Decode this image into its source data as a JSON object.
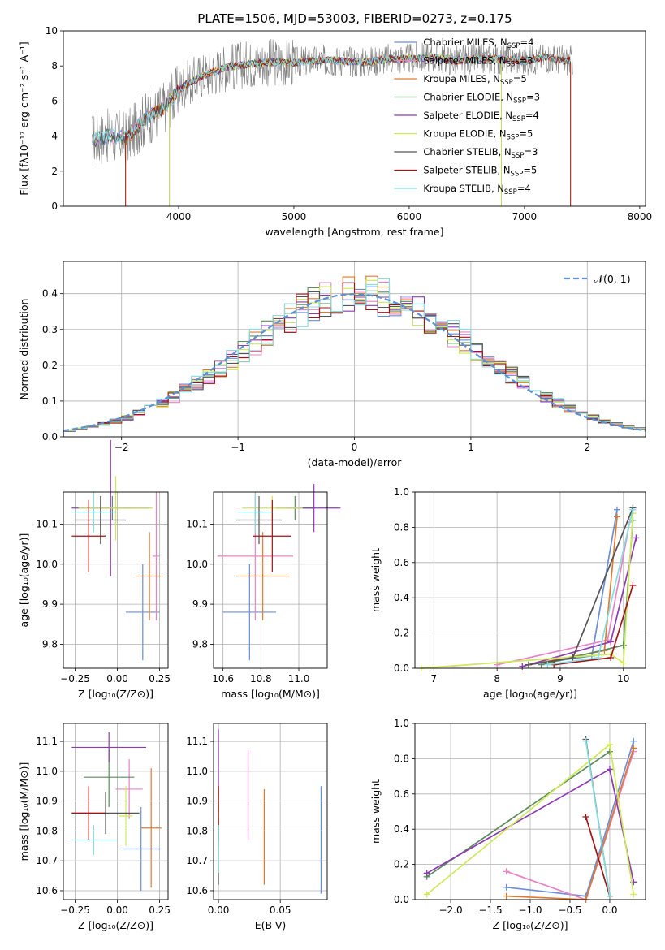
{
  "title": "PLATE=1506, MJD=53003, FIBERID=0273, z=0.175",
  "colors": {
    "Chabrier MILES": "#6a8fd8",
    "Salpeter MILES": "#e983c4",
    "Kroupa MILES": "#e07a2e",
    "Chabrier ELODIE": "#5b8a5b",
    "Salpeter ELODIE": "#8e3ab6",
    "Kroupa ELODIE": "#cdea57",
    "Chabrier STELIB": "#555555",
    "Salpeter STELIB": "#a31313",
    "Kroupa STELIB": "#84dde2"
  },
  "chart_data": [
    {
      "id": "spectrum",
      "type": "line",
      "title": "",
      "xlabel": "wavelength [Angstrom, rest frame]",
      "ylabel": "Flux [fλ10⁻¹⁷ erg cm⁻² s⁻¹ A⁻¹]",
      "xlim": [
        3000,
        8050
      ],
      "ylim": [
        0,
        10
      ],
      "xticks": [
        4000,
        5000,
        6000,
        7000,
        8000
      ],
      "yticks": [
        0,
        2,
        4,
        6,
        8,
        10
      ],
      "legend": [
        "Chabrier MILES, N_SSP=4",
        "Salpeter MILES, N_SSP=3",
        "Kroupa MILES, N_SSP=5",
        "Chabrier ELODIE, N_SSP=3",
        "Salpeter ELODIE, N_SSP=4",
        "Kroupa ELODIE, N_SSP=5",
        "Chabrier STELIB, N_SSP=3",
        "Salpeter STELIB, N_SSP=5",
        "Kroupa STELIB, N_SSP=4"
      ],
      "legend_position": "upper right",
      "data_x": [
        3250,
        3400,
        3550,
        3700,
        3850,
        3950,
        4050,
        4200,
        4400,
        4600,
        4800,
        5000,
        5200,
        5400,
        5600,
        5800,
        6000,
        6200,
        6400,
        6600,
        6800,
        7000,
        7200,
        7350
      ],
      "data_y": [
        3.8,
        4.0,
        3.9,
        4.9,
        5.5,
        6.2,
        6.9,
        7.4,
        7.9,
        8.1,
        8.2,
        8.2,
        8.3,
        8.3,
        8.2,
        8.4,
        8.4,
        8.5,
        8.3,
        8.4,
        8.4,
        8.3,
        8.5,
        8.3
      ],
      "model_cutoffs": {
        "Salpeter STELIB": [
          3540,
          7400
        ],
        "Kroupa MILES": [
          3540,
          7400
        ],
        "Kroupa ELODIE": [
          3920,
          6800
        ],
        "Salpeter ELODIE": [
          3920,
          6800
        ]
      }
    },
    {
      "id": "residuals",
      "type": "histogram",
      "xlabel": "(data-model)/error",
      "ylabel": "Normed distribution",
      "xlim": [
        -2.5,
        2.5
      ],
      "ylim": [
        0,
        0.49
      ],
      "xticks": [
        -2,
        -1,
        0,
        1,
        2
      ],
      "yticks": [
        0.0,
        0.1,
        0.2,
        0.3,
        0.4
      ],
      "legend": [
        "𝒩(0, 1)"
      ],
      "legend_position": "upper right",
      "bin_width": 0.1,
      "bin_start": -2.5
    },
    {
      "id": "age-vs-Z",
      "type": "errorbar",
      "xlabel": "Z [log₁₀(Z/Z⊙)]",
      "ylabel": "age  [log₁₀(age/yr)]",
      "xlim": [
        -0.32,
        0.3
      ],
      "ylim": [
        9.74,
        10.18
      ],
      "xticks": [
        -0.25,
        0.0,
        0.25
      ],
      "yticks": [
        9.8,
        9.9,
        10.0,
        10.1
      ],
      "points": [
        {
          "model": "Chabrier MILES",
          "x": 0.15,
          "y": 9.88,
          "xerr": 0.1,
          "yerr": 0.12
        },
        {
          "model": "Salpeter MILES",
          "x": 0.23,
          "y": 10.02,
          "xerr": 0.02,
          "yerr": 0.16
        },
        {
          "model": "Kroupa MILES",
          "x": 0.19,
          "y": 9.97,
          "xerr": 0.08,
          "yerr": 0.11
        },
        {
          "model": "Chabrier ELODIE",
          "x": -0.03,
          "y": 10.14,
          "xerr": 0.12,
          "yerr": 0.03
        },
        {
          "model": "Salpeter ELODIE",
          "x": -0.04,
          "y": 10.14,
          "xerr": 0.23,
          "yerr": 0.17
        },
        {
          "model": "Kroupa ELODIE",
          "x": -0.01,
          "y": 10.14,
          "xerr": 0.22,
          "yerr": 0.08
        },
        {
          "model": "Chabrier STELIB",
          "x": -0.1,
          "y": 10.11,
          "xerr": 0.15,
          "yerr": 0.06
        },
        {
          "model": "Salpeter STELIB",
          "x": -0.17,
          "y": 10.07,
          "xerr": 0.1,
          "yerr": 0.09
        },
        {
          "model": "Kroupa STELIB",
          "x": -0.14,
          "y": 10.13,
          "xerr": 0.13,
          "yerr": 0.05
        }
      ]
    },
    {
      "id": "age-vs-mass",
      "type": "errorbar",
      "xlabel": "mass [log₁₀(M/M⊙)]",
      "ylabel": "",
      "xlim": [
        10.55,
        11.15
      ],
      "ylim": [
        9.74,
        10.18
      ],
      "xticks": [
        10.6,
        10.8,
        11.0
      ],
      "yticks": [
        9.8,
        9.9,
        10.0,
        10.1
      ],
      "points": [
        {
          "model": "Chabrier MILES",
          "x": 10.74,
          "y": 9.88,
          "xerr": 0.14,
          "yerr": 0.12
        },
        {
          "model": "Salpeter MILES",
          "x": 10.77,
          "y": 10.02,
          "xerr": 0.2,
          "yerr": 0.16
        },
        {
          "model": "Kroupa MILES",
          "x": 10.81,
          "y": 9.97,
          "xerr": 0.14,
          "yerr": 0.11
        },
        {
          "model": "Chabrier ELODIE",
          "x": 10.98,
          "y": 10.14,
          "xerr": 0.1,
          "yerr": 0.03
        },
        {
          "model": "Salpeter ELODIE",
          "x": 11.08,
          "y": 10.14,
          "xerr": 0.14,
          "yerr": 0.06
        },
        {
          "model": "Kroupa ELODIE",
          "x": 10.86,
          "y": 10.14,
          "xerr": 0.16,
          "yerr": 0.03
        },
        {
          "model": "Chabrier STELIB",
          "x": 10.79,
          "y": 10.11,
          "xerr": 0.12,
          "yerr": 0.06
        },
        {
          "model": "Salpeter STELIB",
          "x": 10.86,
          "y": 10.07,
          "xerr": 0.1,
          "yerr": 0.09
        },
        {
          "model": "Kroupa STELIB",
          "x": 10.77,
          "y": 10.13,
          "xerr": 0.09,
          "yerr": 0.05
        }
      ]
    },
    {
      "id": "weight-vs-age",
      "type": "line",
      "xlabel": "age  [log₁₀(age/yr)]",
      "ylabel": "mass weight",
      "xlim": [
        6.7,
        10.35
      ],
      "ylim": [
        0,
        1.0
      ],
      "xticks": [
        7,
        8,
        9,
        10
      ],
      "yticks": [
        0.0,
        0.2,
        0.4,
        0.6,
        0.8,
        1.0
      ],
      "series": [
        {
          "model": "Chabrier MILES",
          "x": [
            8.5,
            9.5,
            9.9
          ],
          "y": [
            0.02,
            0.07,
            0.9
          ]
        },
        {
          "model": "Salpeter MILES",
          "x": [
            8.0,
            9.75,
            10.1
          ],
          "y": [
            0.02,
            0.16,
            0.83
          ]
        },
        {
          "model": "Kroupa MILES",
          "x": [
            8.5,
            9.7,
            9.9
          ],
          "y": [
            0.02,
            0.1,
            0.86
          ]
        },
        {
          "model": "Chabrier ELODIE",
          "x": [
            8.7,
            10.0,
            10.15
          ],
          "y": [
            0.02,
            0.13,
            0.84
          ]
        },
        {
          "model": "Salpeter ELODIE",
          "x": [
            8.4,
            9.8,
            10.2
          ],
          "y": [
            0.01,
            0.15,
            0.74
          ]
        },
        {
          "model": "Kroupa ELODIE",
          "x": [
            6.8,
            9.8,
            10.0,
            10.15
          ],
          "y": [
            0.0,
            0.08,
            0.03,
            0.88
          ]
        },
        {
          "model": "Chabrier STELIB",
          "x": [
            8.5,
            9.2,
            10.15
          ],
          "y": [
            0.02,
            0.06,
            0.91
          ]
        },
        {
          "model": "Salpeter STELIB",
          "x": [
            8.9,
            9.8,
            10.15
          ],
          "y": [
            0.02,
            0.06,
            0.47
          ]
        },
        {
          "model": "Kroupa STELIB",
          "x": [
            8.8,
            9.6,
            10.15
          ],
          "y": [
            0.02,
            0.06,
            0.9
          ]
        }
      ]
    },
    {
      "id": "mass-vs-Z",
      "type": "errorbar",
      "xlabel": "Z [log₁₀(Z/Z⊙)]",
      "ylabel": "mass [log₁₀(M/M⊙)]",
      "xlim": [
        -0.32,
        0.3
      ],
      "ylim": [
        10.57,
        11.16
      ],
      "xticks": [
        -0.25,
        0.0,
        0.25
      ],
      "yticks": [
        10.6,
        10.7,
        10.8,
        10.9,
        11.0,
        11.1
      ],
      "points": [
        {
          "model": "Chabrier MILES",
          "x": 0.14,
          "y": 10.74,
          "xerr": 0.11,
          "yerr": 0.14
        },
        {
          "model": "Salpeter MILES",
          "x": 0.07,
          "y": 10.94,
          "xerr": 0.08,
          "yerr": 0.1
        },
        {
          "model": "Kroupa MILES",
          "x": 0.2,
          "y": 10.81,
          "xerr": 0.06,
          "yerr": 0.2
        },
        {
          "model": "Chabrier ELODIE",
          "x": -0.05,
          "y": 10.98,
          "xerr": 0.15,
          "yerr": 0.1
        },
        {
          "model": "Salpeter ELODIE",
          "x": -0.05,
          "y": 11.08,
          "xerr": 0.22,
          "yerr": 0.05
        },
        {
          "model": "Kroupa ELODIE",
          "x": 0.05,
          "y": 10.85,
          "xerr": 0.04,
          "yerr": 0.1
        },
        {
          "model": "Chabrier STELIB",
          "x": -0.07,
          "y": 10.86,
          "xerr": 0.2,
          "yerr": 0.07
        },
        {
          "model": "Salpeter STELIB",
          "x": -0.17,
          "y": 10.86,
          "xerr": 0.1,
          "yerr": 0.09
        },
        {
          "model": "Kroupa STELIB",
          "x": -0.14,
          "y": 10.77,
          "xerr": 0.14,
          "yerr": 0.05
        }
      ]
    },
    {
      "id": "mass-vs-EBV",
      "type": "errorbar",
      "xlabel": "E(B-V)",
      "ylabel": "",
      "xlim": [
        -0.004,
        0.088
      ],
      "ylim": [
        10.57,
        11.16
      ],
      "xticks": [
        0.0,
        0.05
      ],
      "yticks": [
        10.6,
        10.7,
        10.8,
        10.9,
        11.0,
        11.1
      ],
      "points": [
        {
          "model": "Chabrier MILES",
          "x": 0.083,
          "y": 10.77,
          "yerr": 0.18
        },
        {
          "model": "Salpeter MILES",
          "x": 0.024,
          "y": 10.92,
          "yerr": 0.15
        },
        {
          "model": "Kroupa MILES",
          "x": 0.037,
          "y": 10.78,
          "yerr": 0.16
        },
        {
          "model": "Chabrier ELODIE",
          "x": 0.0,
          "y": 10.85,
          "yerr": 0.1
        },
        {
          "model": "Salpeter ELODIE",
          "x": 0.0,
          "y": 11.0,
          "yerr": 0.14
        },
        {
          "model": "Kroupa ELODIE",
          "x": 0.0,
          "y": 10.86,
          "yerr": 0.06
        },
        {
          "model": "Chabrier STELIB",
          "x": 0.0,
          "y": 10.73,
          "yerr": 0.11
        },
        {
          "model": "Salpeter STELIB",
          "x": 0.0,
          "y": 10.86,
          "yerr": 0.09
        },
        {
          "model": "Kroupa STELIB",
          "x": 0.0,
          "y": 10.74,
          "yerr": 0.08
        }
      ]
    },
    {
      "id": "weight-vs-Z",
      "type": "line",
      "xlabel": "Z [log₁₀(Z/Z⊙)]",
      "ylabel": "mass weight",
      "xlim": [
        -2.45,
        0.45
      ],
      "ylim": [
        0,
        1.0
      ],
      "xticks": [
        -2.0,
        -1.5,
        -1.0,
        -0.5,
        0.0
      ],
      "yticks": [
        0.0,
        0.2,
        0.4,
        0.6,
        0.8,
        1.0
      ],
      "series": [
        {
          "model": "Chabrier MILES",
          "x": [
            -1.3,
            -0.3,
            0.3
          ],
          "y": [
            0.07,
            0.02,
            0.9
          ]
        },
        {
          "model": "Salpeter MILES",
          "x": [
            -1.3,
            -0.3,
            0.3
          ],
          "y": [
            0.16,
            0.0,
            0.84
          ]
        },
        {
          "model": "Kroupa MILES",
          "x": [
            -1.3,
            -0.3,
            0.3
          ],
          "y": [
            0.02,
            0.0,
            0.86
          ]
        },
        {
          "model": "Chabrier ELODIE",
          "x": [
            -2.3,
            0.0
          ],
          "y": [
            0.13,
            0.84
          ]
        },
        {
          "model": "Salpeter ELODIE",
          "x": [
            -2.3,
            0.0,
            0.3
          ],
          "y": [
            0.15,
            0.74,
            0.1
          ]
        },
        {
          "model": "Kroupa ELODIE",
          "x": [
            -2.3,
            0.0,
            0.3
          ],
          "y": [
            0.03,
            0.88,
            0.03
          ]
        },
        {
          "model": "Chabrier STELIB",
          "x": [
            -0.3,
            0.0
          ],
          "y": [
            0.91,
            0.02
          ]
        },
        {
          "model": "Salpeter STELIB",
          "x": [
            -0.3,
            0.0
          ],
          "y": [
            0.47,
            0.02
          ]
        },
        {
          "model": "Kroupa STELIB",
          "x": [
            -0.3,
            0.0
          ],
          "y": [
            0.9,
            0.02
          ]
        }
      ]
    }
  ]
}
